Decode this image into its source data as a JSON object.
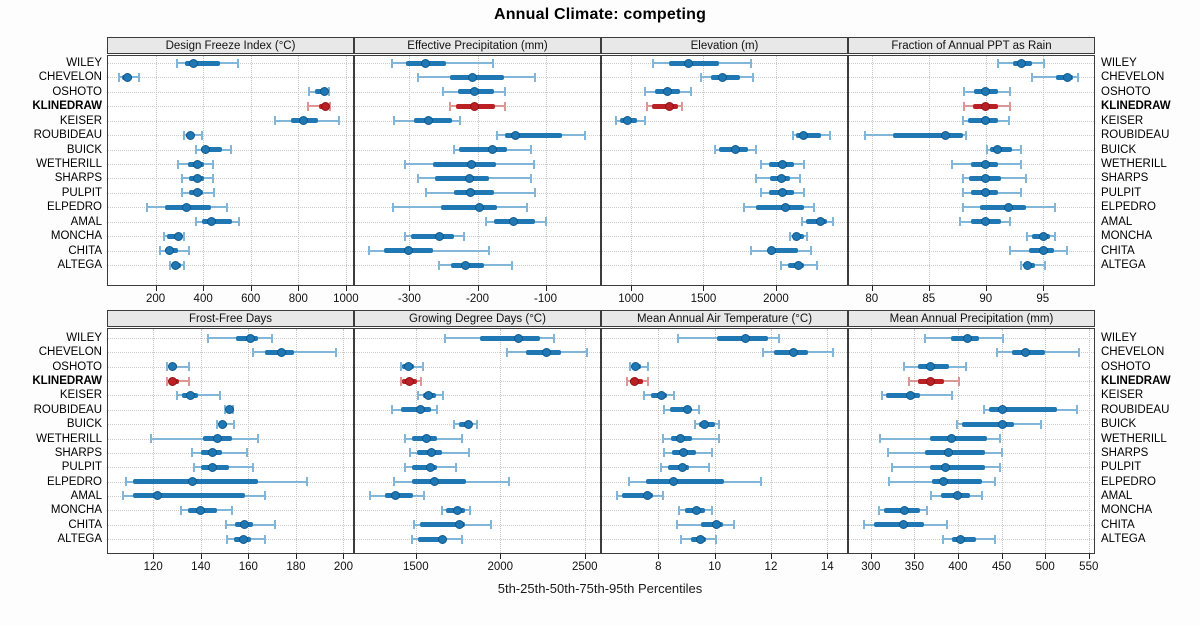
{
  "title": "Annual Climate: competing",
  "footer": "5th-25th-50th-75th-95th Percentiles",
  "stations": [
    "WILEY",
    "CHEVELON",
    "OSHOTO",
    "KLINEDRAW",
    "KEISER",
    "ROUBIDEAU",
    "BUICK",
    "WETHERILL",
    "SHARPS",
    "PULPIT",
    "ELPEDRO",
    "AMAL",
    "MONCHA",
    "CHITA",
    "ALTEGA"
  ],
  "highlight_station": "KLINEDRAW",
  "percentiles": [
    5,
    25,
    50,
    75,
    95
  ],
  "colors": {
    "series_blue": "#1f77b4",
    "series_blue_light": "#82b6d9",
    "series_blue_dark": "#10588c",
    "highlight_red": "#bb2025",
    "highlight_red_light": "#dd9694",
    "highlight_red_dark": "#8d1216",
    "strip_bg": "#e8e8e8",
    "grid": "#c8c8c8"
  },
  "chart_data": [
    {
      "type": "percentile_dotplot",
      "title": "Design Freeze Index (°C)",
      "xlim": [
        0,
        1030
      ],
      "ticks": [
        200,
        400,
        600,
        800,
        1000
      ],
      "values": [
        [
          290,
          325,
          360,
          470,
          545
        ],
        [
          45,
          60,
          80,
          100,
          130
        ],
        [
          845,
          870,
          910,
          920,
          930
        ],
        [
          840,
          885,
          915,
          925,
          935
        ],
        [
          700,
          770,
          820,
          885,
          970
        ],
        [
          320,
          330,
          345,
          360,
          395
        ],
        [
          370,
          390,
          410,
          480,
          515
        ],
        [
          295,
          335,
          375,
          405,
          440
        ],
        [
          310,
          340,
          375,
          405,
          440
        ],
        [
          310,
          340,
          375,
          400,
          445
        ],
        [
          165,
          240,
          330,
          435,
          500
        ],
        [
          370,
          395,
          435,
          520,
          550
        ],
        [
          235,
          250,
          295,
          310,
          320
        ],
        [
          220,
          240,
          260,
          295,
          340
        ],
        [
          260,
          270,
          285,
          305,
          320
        ]
      ]
    },
    {
      "type": "percentile_dotplot",
      "title": "Effective Precipitation (mm)",
      "xlim": [
        -380,
        -20
      ],
      "ticks": [
        -300,
        -200,
        -100
      ],
      "values": [
        [
          -325,
          -305,
          -277,
          -247,
          -177
        ],
        [
          -287,
          -240,
          -207,
          -161,
          -115
        ],
        [
          -250,
          -229,
          -204,
          -176,
          -159
        ],
        [
          -240,
          -232,
          -205,
          -174,
          -159
        ],
        [
          -323,
          -293,
          -272,
          -237,
          -225
        ],
        [
          -172,
          -159,
          -144,
          -76,
          -42
        ],
        [
          -234,
          -227,
          -178,
          -156,
          -122
        ],
        [
          -307,
          -266,
          -209,
          -173,
          -117
        ],
        [
          -287,
          -263,
          -212,
          -183,
          -122
        ],
        [
          -276,
          -234,
          -211,
          -176,
          -116
        ],
        [
          -324,
          -253,
          -197,
          -171,
          -127
        ],
        [
          -188,
          -176,
          -147,
          -115,
          -100
        ],
        [
          -307,
          -297,
          -256,
          -234,
          -220
        ],
        [
          -359,
          -337,
          -301,
          -266,
          -183
        ],
        [
          -256,
          -239,
          -217,
          -190,
          -149
        ]
      ]
    },
    {
      "type": "percentile_dotplot",
      "title": "Elevation (m)",
      "xlim": [
        800,
        2490
      ],
      "ticks": [
        1000,
        1500,
        2000
      ],
      "values": [
        [
          1155,
          1260,
          1400,
          1610,
          1830
        ],
        [
          1485,
          1555,
          1630,
          1750,
          1845
        ],
        [
          1100,
          1165,
          1250,
          1340,
          1415
        ],
        [
          1110,
          1145,
          1265,
          1325,
          1350
        ],
        [
          895,
          925,
          975,
          1040,
          1100
        ],
        [
          2115,
          2135,
          2190,
          2310,
          2375
        ],
        [
          1580,
          1610,
          1720,
          1805,
          1865
        ],
        [
          1900,
          1950,
          2045,
          2125,
          2190
        ],
        [
          1865,
          1960,
          2035,
          2100,
          2165
        ],
        [
          1900,
          1955,
          2045,
          2125,
          2190
        ],
        [
          1780,
          1865,
          2065,
          2195,
          2265
        ],
        [
          2180,
          2205,
          2310,
          2355,
          2390
        ],
        [
          2095,
          2115,
          2145,
          2195,
          2215
        ],
        [
          1830,
          1945,
          1970,
          2150,
          2240
        ],
        [
          2035,
          2080,
          2155,
          2195,
          2285
        ]
      ]
    },
    {
      "type": "percentile_dotplot",
      "title": "Fraction of Annual PPT as Rain",
      "xlim": [
        78,
        99.5
      ],
      "ticks": [
        80,
        85,
        90,
        95
      ],
      "values": [
        [
          91.1,
          92.4,
          93.1,
          94.1,
          95.1
        ],
        [
          94.1,
          96.2,
          97.2,
          97.7,
          98.1
        ],
        [
          88.1,
          89,
          90,
          91.1,
          92.1
        ],
        [
          88.1,
          88.9,
          90,
          91.1,
          92.1
        ],
        [
          88,
          88.4,
          90,
          91.1,
          92
        ],
        [
          79.4,
          81.9,
          86.5,
          88,
          88.3
        ],
        [
          90.1,
          90.4,
          91,
          92.3,
          93.1
        ],
        [
          87,
          88.7,
          90,
          91.1,
          93.1
        ],
        [
          88,
          88.5,
          90,
          91.3,
          93.5
        ],
        [
          88,
          88.7,
          90,
          91.1,
          93.1
        ],
        [
          88,
          89.5,
          92,
          93.5,
          96.1
        ],
        [
          87.7,
          88.7,
          90,
          91.3,
          92.1
        ],
        [
          93.6,
          94.1,
          95.1,
          95.6,
          96.1
        ],
        [
          92.1,
          93.8,
          95.1,
          96,
          97.1
        ],
        [
          93.1,
          93.4,
          93.7,
          94.3,
          95.2
        ]
      ]
    },
    {
      "type": "percentile_dotplot",
      "title": "Frost-Free Days",
      "xlim": [
        101,
        204
      ],
      "ticks": [
        120,
        140,
        160,
        180,
        200
      ],
      "values": [
        [
          143,
          155,
          161,
          164,
          170
        ],
        [
          162,
          167,
          174,
          179,
          197
        ],
        [
          126,
          127,
          128,
          130,
          135
        ],
        [
          126,
          127,
          128,
          131,
          135
        ],
        [
          130,
          132,
          135.5,
          139,
          148
        ],
        [
          150,
          151,
          152,
          153,
          153.5
        ],
        [
          147,
          148,
          149,
          151,
          154
        ],
        [
          119,
          141,
          147,
          153,
          164
        ],
        [
          136.5,
          140,
          145,
          149,
          159.5
        ],
        [
          137,
          140,
          145,
          152,
          162
        ],
        [
          108.5,
          111.5,
          136.5,
          164,
          184.5
        ],
        [
          107.5,
          111.5,
          122,
          158.5,
          167
        ],
        [
          131.5,
          134.5,
          140,
          147,
          153
        ],
        [
          150.5,
          154.5,
          158.5,
          162,
          171
        ],
        [
          151,
          154,
          158,
          161,
          167
        ]
      ]
    },
    {
      "type": "percentile_dotplot",
      "title": "Growing Degree Days (°C)",
      "xlim": [
        1140,
        2590
      ],
      "ticks": [
        1500,
        2000,
        2500
      ],
      "values": [
        [
          1675,
          1880,
          2110,
          2235,
          2320
        ],
        [
          2040,
          2150,
          2275,
          2360,
          2515
        ],
        [
          1410,
          1420,
          1455,
          1490,
          1540
        ],
        [
          1410,
          1420,
          1460,
          1505,
          1530
        ],
        [
          1510,
          1540,
          1575,
          1620,
          1660
        ],
        [
          1360,
          1410,
          1530,
          1590,
          1625
        ],
        [
          1725,
          1755,
          1810,
          1835,
          1860
        ],
        [
          1435,
          1480,
          1565,
          1625,
          1775
        ],
        [
          1465,
          1505,
          1595,
          1655,
          1815
        ],
        [
          1435,
          1475,
          1585,
          1625,
          1740
        ],
        [
          1370,
          1475,
          1610,
          1795,
          2050
        ],
        [
          1230,
          1320,
          1380,
          1485,
          1550
        ],
        [
          1655,
          1680,
          1745,
          1790,
          1820
        ],
        [
          1490,
          1525,
          1760,
          1790,
          1945
        ],
        [
          1480,
          1510,
          1655,
          1680,
          1775
        ]
      ]
    },
    {
      "type": "percentile_dotplot",
      "title": "Mean Annual Air Temperature (°C)",
      "xlim": [
        6,
        14.7
      ],
      "ticks": [
        8,
        10,
        12,
        14
      ],
      "values": [
        [
          8.7,
          10.1,
          11.1,
          11.9,
          12.3
        ],
        [
          11.7,
          12.1,
          12.8,
          13.3,
          14.2
        ],
        [
          7,
          7.05,
          7.2,
          7.4,
          7.65
        ],
        [
          6.9,
          7,
          7.15,
          7.45,
          7.65
        ],
        [
          7.5,
          7.75,
          8.1,
          8.3,
          8.55
        ],
        [
          8.2,
          8.4,
          9.05,
          9.15,
          9.45
        ],
        [
          9.3,
          9.45,
          9.65,
          10,
          10.15
        ],
        [
          8.15,
          8.45,
          8.8,
          9.2,
          10.15
        ],
        [
          8.2,
          8.5,
          8.9,
          9.35,
          9.9
        ],
        [
          8.1,
          8.35,
          8.85,
          9.1,
          9.8
        ],
        [
          6.95,
          7.55,
          8.55,
          10.35,
          11.65
        ],
        [
          6.55,
          6.7,
          7.6,
          7.8,
          8.15
        ],
        [
          8.75,
          8.95,
          9.35,
          9.65,
          9.9
        ],
        [
          8.65,
          9.5,
          10.05,
          10.3,
          10.7
        ],
        [
          8.8,
          9.15,
          9.5,
          9.7,
          10.05
        ]
      ]
    },
    {
      "type": "percentile_dotplot",
      "title": "Mean Annual Precipitation (mm)",
      "xlim": [
        275,
        556
      ],
      "ticks": [
        300,
        350,
        400,
        450,
        500,
        550
      ],
      "values": [
        [
          362,
          392,
          411,
          424,
          452
        ],
        [
          445,
          462,
          478,
          500,
          539
        ],
        [
          338,
          354,
          369,
          390,
          409
        ],
        [
          344,
          354,
          369,
          384,
          401
        ],
        [
          313,
          318,
          345,
          356,
          393
        ],
        [
          430,
          435,
          451,
          513,
          537
        ],
        [
          399,
          405,
          451,
          464,
          495
        ],
        [
          310,
          368,
          393,
          433,
          448
        ],
        [
          320,
          362,
          389,
          431,
          451
        ],
        [
          324,
          368,
          386,
          431,
          448
        ],
        [
          321,
          370,
          383,
          427,
          442
        ],
        [
          369,
          381,
          399,
          414,
          427
        ],
        [
          309,
          315,
          339,
          357,
          365
        ],
        [
          292,
          304,
          338,
          361,
          387
        ],
        [
          383,
          393,
          403,
          421,
          443
        ]
      ]
    }
  ]
}
